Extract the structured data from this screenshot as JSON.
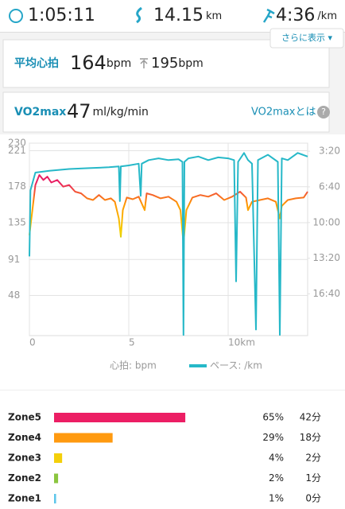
{
  "header": {
    "time": "1:05:11",
    "distance": "14.15",
    "distance_unit": "km",
    "pace": "4:36",
    "pace_unit": "/km",
    "more_button": "さらに表示 ▾"
  },
  "heart_card": {
    "label": "平均心拍",
    "avg": "164",
    "avg_unit": "bpm",
    "max": "195",
    "max_unit": "bpm"
  },
  "vo2_card": {
    "label": "VO2max",
    "value": "47",
    "unit": "ml/kg/min",
    "link": "VO2maxとは"
  },
  "chart_data": {
    "type": "line",
    "xlim": [
      0,
      14
    ],
    "xticks": [
      0,
      5,
      {
        "value": 10,
        "label": "10km"
      }
    ],
    "ylim": [
      0,
      230
    ],
    "yticks": [
      48,
      91,
      135,
      178,
      221,
      230
    ],
    "y2lim": [
      1234,
      155
    ],
    "y2ticks": [
      {
        "value": 200,
        "label": "3:20"
      },
      {
        "value": 400,
        "label": "6:40"
      },
      {
        "value": 600,
        "label": "10:00"
      },
      {
        "value": 800,
        "label": "13:20"
      },
      {
        "value": 1000,
        "label": "16:40"
      }
    ],
    "grid": true,
    "series": [
      {
        "name": "心拍: bpm",
        "color": "#e91e63",
        "x": [
          0,
          0.1,
          0.3,
          0.5,
          0.7,
          0.9,
          1.1,
          1.4,
          1.7,
          2.0,
          2.3,
          2.6,
          2.9,
          3.2,
          3.5,
          3.8,
          4.1,
          4.3,
          4.5,
          4.6,
          4.7,
          4.9,
          5.2,
          5.5,
          5.8,
          5.9,
          6.2,
          6.6,
          7.0,
          7.4,
          7.6,
          7.75,
          7.9,
          8.2,
          8.6,
          9.0,
          9.4,
          9.8,
          10.2,
          10.6,
          10.9,
          11.0,
          11.2,
          11.6,
          12.0,
          12.4,
          12.6,
          12.7,
          13.0,
          13.4,
          13.8,
          14.0
        ],
        "values": [
          120,
          140,
          180,
          192,
          186,
          190,
          183,
          186,
          178,
          180,
          172,
          170,
          164,
          162,
          168,
          162,
          164,
          160,
          140,
          118,
          150,
          165,
          163,
          166,
          150,
          170,
          168,
          164,
          166,
          160,
          150,
          110,
          150,
          165,
          168,
          166,
          170,
          162,
          166,
          172,
          165,
          150,
          160,
          162,
          164,
          160,
          140,
          155,
          162,
          164,
          165,
          172
        ]
      },
      {
        "name": "ペース: /km",
        "color": "#26b8c8",
        "axis": "y2",
        "x": [
          0,
          0.05,
          0.3,
          1,
          2,
          3,
          4,
          4.5,
          4.55,
          4.6,
          5,
          5.5,
          5.6,
          5.65,
          6,
          6.5,
          7,
          7.5,
          7.7,
          7.75,
          7.8,
          8,
          8.5,
          9,
          9.5,
          10,
          10.3,
          10.4,
          10.5,
          10.8,
          11.0,
          11.2,
          11.4,
          11.5,
          12,
          12.5,
          12.6,
          12.7,
          13,
          13.5,
          14
        ],
        "values": [
          790,
          420,
          320,
          310,
          300,
          295,
          290,
          285,
          480,
          285,
          280,
          270,
          450,
          270,
          250,
          240,
          250,
          245,
          260,
          1230,
          260,
          240,
          230,
          250,
          235,
          240,
          250,
          930,
          260,
          210,
          250,
          270,
          1200,
          250,
          220,
          260,
          1230,
          240,
          250,
          210,
          230
        ]
      }
    ]
  },
  "zones": [
    {
      "name": "Zone5",
      "color": "#ec1e64",
      "percent": 65,
      "percent_label": "65%",
      "minutes": "42分"
    },
    {
      "name": "Zone4",
      "color": "#ff9a10",
      "percent": 29,
      "percent_label": "29%",
      "minutes": "18分"
    },
    {
      "name": "Zone3",
      "color": "#f4cf0a",
      "percent": 4,
      "percent_label": "4%",
      "minutes": "2分"
    },
    {
      "name": "Zone2",
      "color": "#8bc53f",
      "percent": 2,
      "percent_label": "2%",
      "minutes": "1分"
    },
    {
      "name": "Zone1",
      "color": "#5ec6ea",
      "percent": 1,
      "percent_label": "1%",
      "minutes": "0分"
    }
  ]
}
